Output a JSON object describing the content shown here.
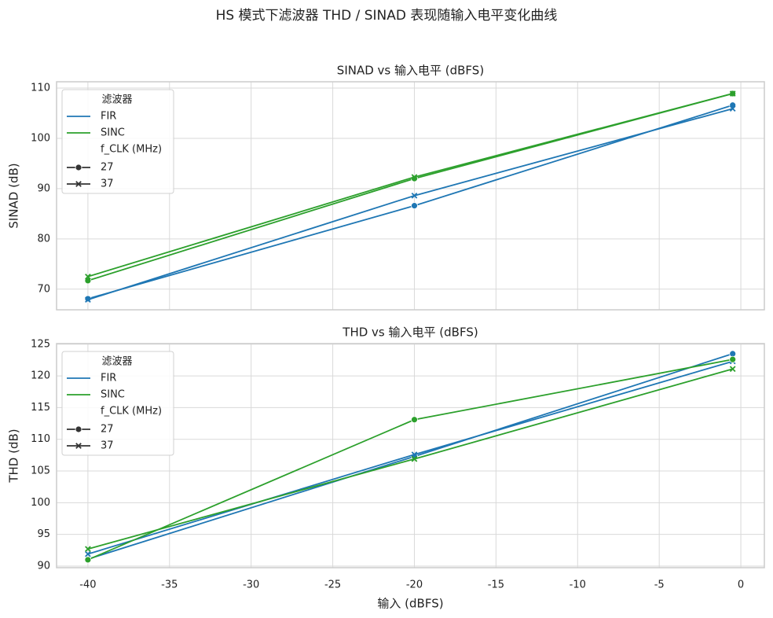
{
  "title": "HS 模式下滤波器 THD / SINAD 表现随输入电平变化曲线",
  "chart_data": [
    {
      "type": "line",
      "title": "SINAD vs 输入电平 (dBFS)",
      "ylabel": "SINAD (dB)",
      "x": [
        -40,
        -20,
        -0.5
      ],
      "xlim": [
        -41.92,
        1.44
      ],
      "xticks": [
        -40,
        -35,
        -30,
        -25,
        -20,
        -15,
        -10,
        -5,
        0
      ],
      "ylim": [
        65.9,
        111.25
      ],
      "yticks": [
        70,
        80,
        90,
        100,
        110
      ],
      "grid": true,
      "legend": {
        "title": "滤波器",
        "items": [
          {
            "name": "FIR",
            "color": "#1f77b4"
          },
          {
            "name": "SINC",
            "color": "#2ca02c"
          }
        ],
        "title2": "f_CLK (MHz)",
        "items2": [
          {
            "name": "27",
            "marker": "circle"
          },
          {
            "name": "37",
            "marker": "x"
          }
        ]
      },
      "series": [
        {
          "filter": 0,
          "style": 0,
          "values": [
            68.1,
            86.6,
            106.6
          ]
        },
        {
          "filter": 0,
          "style": 1,
          "values": [
            67.9,
            88.6,
            105.9
          ]
        },
        {
          "filter": 1,
          "style": 0,
          "values": [
            71.7,
            92.0,
            108.9
          ]
        },
        {
          "filter": 1,
          "style": 1,
          "values": [
            72.5,
            92.3,
            108.9
          ]
        }
      ]
    },
    {
      "type": "line",
      "title": "THD vs 输入电平 (dBFS)",
      "ylabel": "THD (dB)",
      "xlabel": "输入 (dBFS)",
      "x": [
        -40,
        -20,
        -0.5
      ],
      "xlim": [
        -41.92,
        1.44
      ],
      "xticks": [
        -40,
        -35,
        -30,
        -25,
        -20,
        -15,
        -10,
        -5,
        0
      ],
      "ylim": [
        89.75,
        125.1
      ],
      "yticks": [
        90,
        95,
        100,
        105,
        110,
        115,
        120,
        125
      ],
      "grid": true,
      "legend": {
        "title": "滤波器",
        "items": [
          {
            "name": "FIR",
            "color": "#1f77b4"
          },
          {
            "name": "SINC",
            "color": "#2ca02c"
          }
        ],
        "title2": "f_CLK (MHz)",
        "items2": [
          {
            "name": "27",
            "marker": "circle"
          },
          {
            "name": "37",
            "marker": "x"
          }
        ]
      },
      "series": [
        {
          "filter": 0,
          "style": 0,
          "values": [
            91.1,
            107.3,
            123.5
          ]
        },
        {
          "filter": 0,
          "style": 1,
          "values": [
            91.9,
            107.6,
            122.3
          ]
        },
        {
          "filter": 1,
          "style": 0,
          "values": [
            91.0,
            113.1,
            122.6
          ]
        },
        {
          "filter": 1,
          "style": 1,
          "values": [
            92.7,
            106.9,
            121.1
          ]
        }
      ]
    }
  ]
}
